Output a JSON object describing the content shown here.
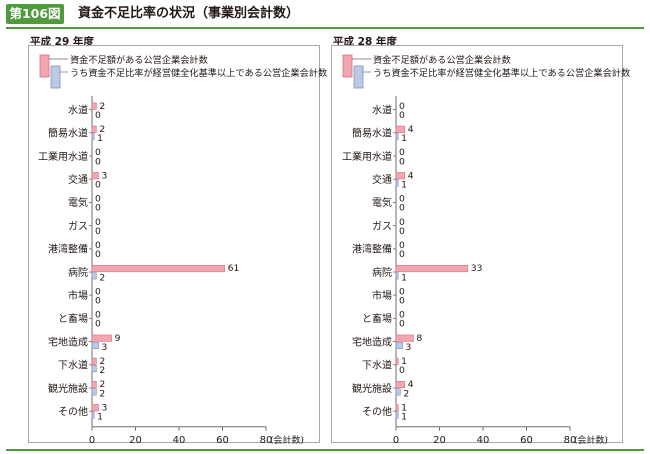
{
  "header": {
    "figure_number": "第106図",
    "title": "資金不足比率の状況（事業別会計数）"
  },
  "colors": {
    "accent": "#4f9a3c",
    "series_main": "#f3a6b0",
    "series_main_stroke": "#d9707f",
    "series_sub": "#bcc9e2",
    "series_sub_stroke": "#7f93bd",
    "axis": "#6d6d6d",
    "grid": "#c8c8c8"
  },
  "chart_data": [
    {
      "type": "bar",
      "orientation": "horizontal",
      "title": "平成 29 年度",
      "categories": [
        "水道",
        "簡易水道",
        "工業用水道",
        "交通",
        "電気",
        "ガス",
        "港湾整備",
        "病院",
        "市場",
        "と畜場",
        "宅地造成",
        "下水道",
        "観光施設",
        "その他"
      ],
      "series": [
        {
          "name": "資金不足額がある公営企業会計数",
          "values": [
            2,
            2,
            0,
            3,
            0,
            0,
            0,
            61,
            0,
            0,
            9,
            2,
            2,
            3
          ]
        },
        {
          "name": "うち資金不足比率が経営健全化基準以上である公営企業会計数",
          "values": [
            0,
            1,
            0,
            0,
            0,
            0,
            0,
            2,
            0,
            0,
            3,
            2,
            2,
            1
          ]
        }
      ],
      "x_ticks": [
        "0",
        "20",
        "40",
        "60",
        "80"
      ],
      "xlim": [
        0,
        80
      ],
      "xlabel": "(会計数)",
      "grid": false,
      "legend_position": "top-left"
    },
    {
      "type": "bar",
      "orientation": "horizontal",
      "title": "平成 28 年度",
      "categories": [
        "水道",
        "簡易水道",
        "工業用水道",
        "交通",
        "電気",
        "ガス",
        "港湾整備",
        "病院",
        "市場",
        "と畜場",
        "宅地造成",
        "下水道",
        "観光施設",
        "その他"
      ],
      "series": [
        {
          "name": "資金不足額がある公営企業会計数",
          "values": [
            0,
            4,
            0,
            4,
            0,
            0,
            0,
            33,
            0,
            0,
            8,
            1,
            4,
            1
          ]
        },
        {
          "name": "うち資金不足比率が経営健全化基準以上である公営企業会計数",
          "values": [
            0,
            1,
            0,
            1,
            0,
            0,
            0,
            1,
            0,
            0,
            3,
            0,
            2,
            1
          ]
        }
      ],
      "x_ticks": [
        "0",
        "20",
        "40",
        "60",
        "80"
      ],
      "xlim": [
        0,
        80
      ],
      "xlabel": "(会計数)",
      "grid": false,
      "legend_position": "top-left"
    }
  ]
}
